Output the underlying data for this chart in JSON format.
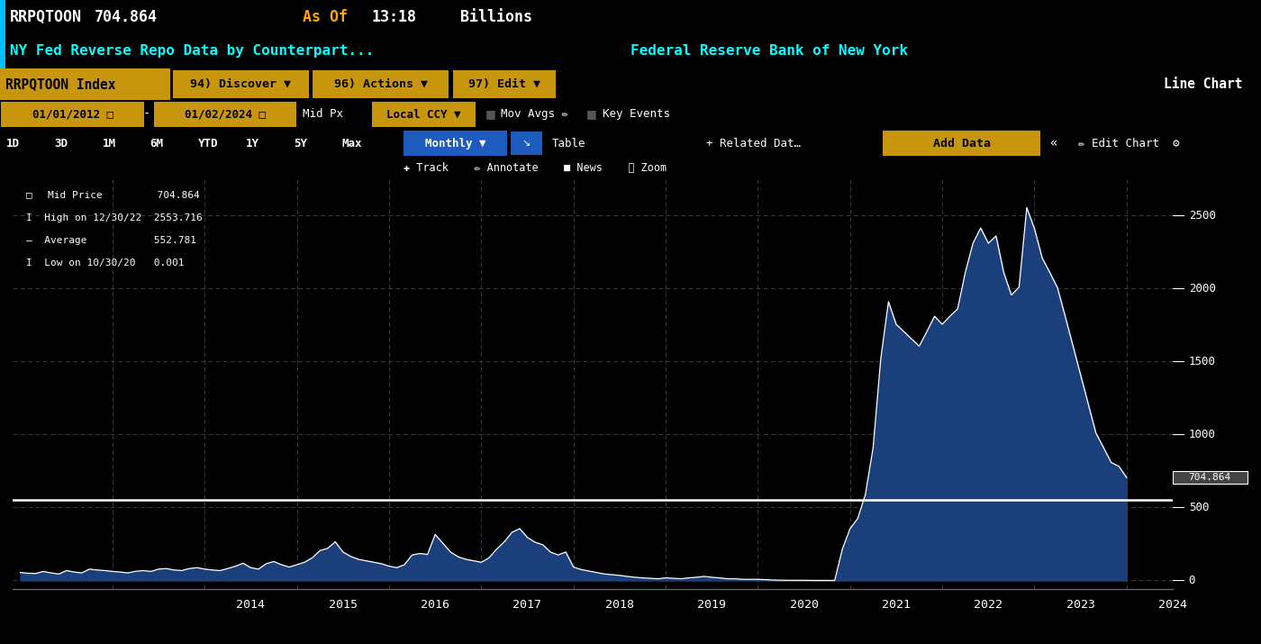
{
  "ticker": "RRPQTOON",
  "value": "704.864",
  "as_of": "As Of",
  "time": "13:18",
  "unit": "Billions",
  "subtitle": "NY Fed Reverse Repo Data by Counterpart...",
  "source": "Federal Reserve Bank of New York",
  "toolbar1_left": "RRPQTOON Index",
  "toolbar1_right": "Line Chart",
  "legend_mid_price": "Mid Price",
  "legend_mid_value": "704.864",
  "legend_high": "High on 12/30/22",
  "legend_high_value": "2553.716",
  "legend_avg": "Average",
  "legend_avg_value": "552.781",
  "legend_low": "Low on 10/30/20",
  "legend_low_value": "0.001",
  "avg_value": 552.781,
  "current_value": 704.864,
  "bg_color": "#000000",
  "toolbar_gold": "#C8960C",
  "toolbar_crimson": "#8B0000",
  "toolbar_dark": "#1c1c1c",
  "blue_button": "#1E5BBF",
  "line_color": "#FFFFFF",
  "fill_color": "#1B3F7A",
  "cyan_color": "#00FFFF",
  "orange_color": "#FFA500",
  "y_ticks": [
    0,
    500,
    1000,
    1500,
    2000,
    2500
  ],
  "ylim": [
    -60,
    2750
  ],
  "x_tick_labels": [
    "2014",
    "2015",
    "2016",
    "2017",
    "2018",
    "2019",
    "2020",
    "2021",
    "2022",
    "2023",
    "2024"
  ],
  "start_year": 2012,
  "values": [
    55,
    50,
    48,
    62,
    52,
    44,
    68,
    58,
    52,
    78,
    72,
    68,
    62,
    58,
    52,
    63,
    68,
    62,
    78,
    82,
    72,
    68,
    82,
    88,
    78,
    72,
    68,
    82,
    98,
    118,
    88,
    78,
    115,
    130,
    108,
    92,
    108,
    125,
    155,
    205,
    220,
    265,
    195,
    165,
    145,
    135,
    125,
    115,
    98,
    88,
    108,
    175,
    185,
    178,
    315,
    255,
    195,
    162,
    145,
    135,
    125,
    155,
    215,
    265,
    330,
    355,
    295,
    262,
    245,
    195,
    175,
    195,
    92,
    75,
    65,
    55,
    45,
    40,
    35,
    28,
    22,
    18,
    15,
    12,
    18,
    15,
    12,
    18,
    22,
    28,
    22,
    18,
    12,
    12,
    8,
    8,
    8,
    6,
    3,
    2,
    1.5,
    1.5,
    1.5,
    0.5,
    0.5,
    0.001,
    0.5,
    215,
    355,
    425,
    590,
    910,
    1520,
    1910,
    1755,
    1705,
    1655,
    1605,
    1705,
    1810,
    1755,
    1810,
    1860,
    2110,
    2310,
    2415,
    2310,
    2360,
    2110,
    1955,
    2010,
    2554,
    2410,
    2210,
    2110,
    2005,
    1810,
    1610,
    1410,
    1210,
    1010,
    910,
    808,
    782,
    704.864
  ]
}
